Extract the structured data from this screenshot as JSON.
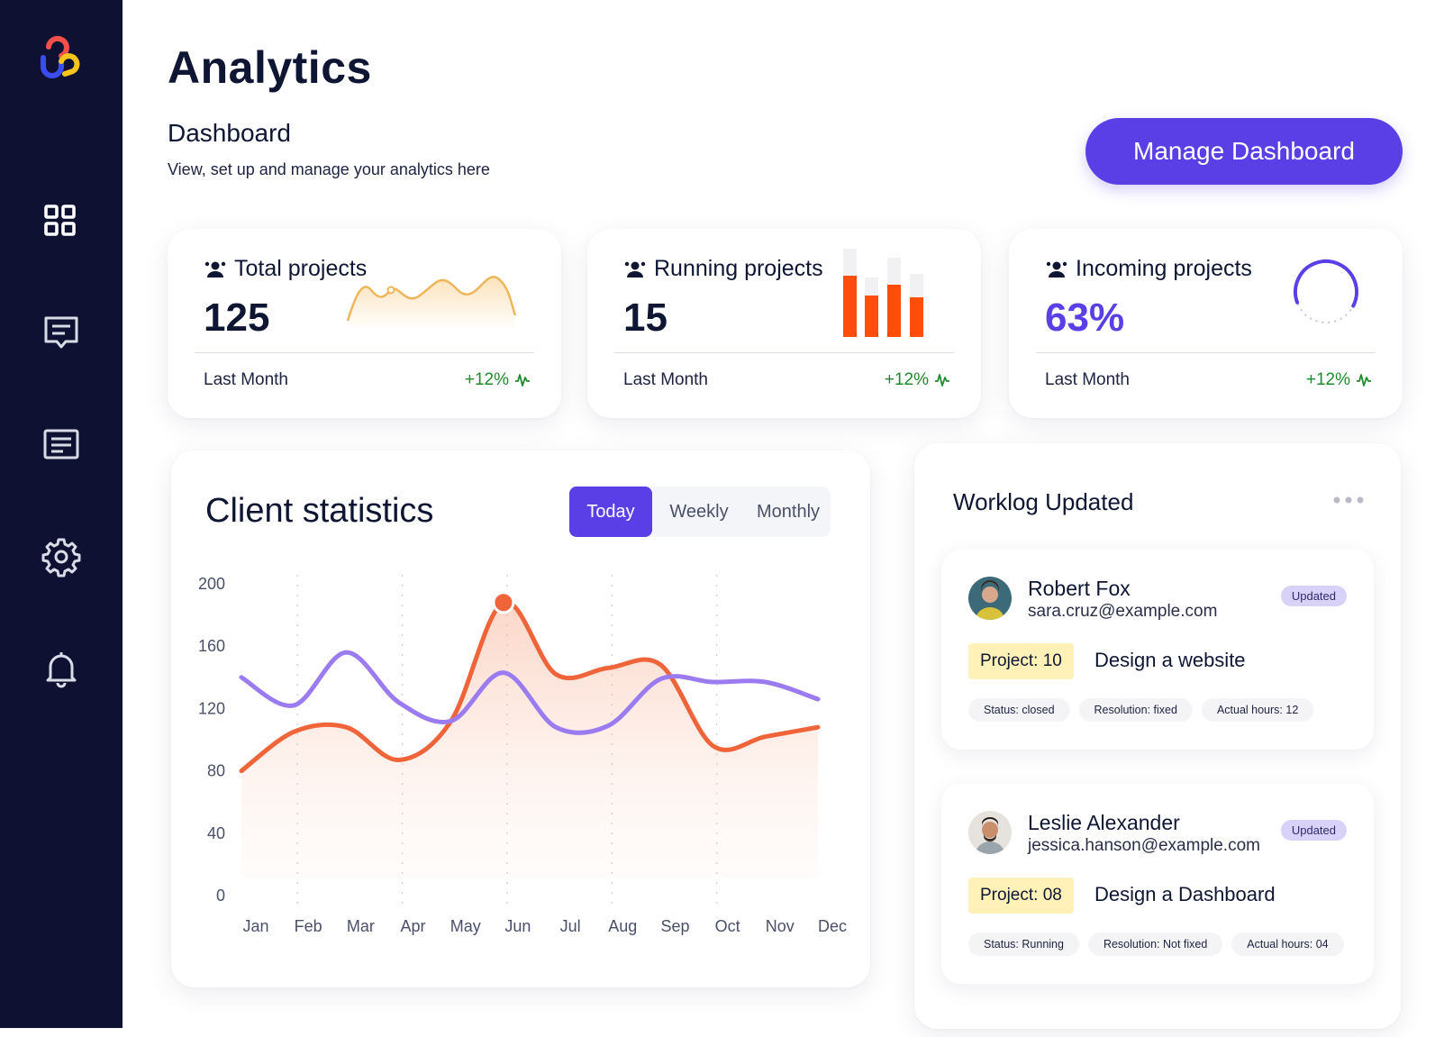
{
  "sidebar": {
    "logo": "app-logo",
    "items": [
      {
        "icon": "grid-icon",
        "name": "sidebar-item-dashboard"
      },
      {
        "icon": "chat-icon",
        "name": "sidebar-item-messages"
      },
      {
        "icon": "document-icon",
        "name": "sidebar-item-documents"
      },
      {
        "icon": "gear-icon",
        "name": "sidebar-item-settings"
      },
      {
        "icon": "bell-icon",
        "name": "sidebar-item-notifications"
      }
    ]
  },
  "header": {
    "title": "Analytics",
    "section": "Dashboard",
    "subtitle": "View, set up and manage your analytics here",
    "manage_button": "Manage Dashboard"
  },
  "stats": [
    {
      "label": "Total projects",
      "value": "125",
      "period": "Last Month",
      "change": "+12%",
      "icon": "people-icon",
      "visual": "area-sparkline"
    },
    {
      "label": "Running projects",
      "value": "15",
      "period": "Last Month",
      "change": "+12%",
      "icon": "people-icon",
      "visual": "mini-bar-chart"
    },
    {
      "label": "Incoming projects",
      "value": "63%",
      "period": "Last Month",
      "change": "+12%",
      "icon": "people-icon",
      "visual": "progress-ring",
      "progress": 0.63
    }
  ],
  "colors": {
    "sidebar": "#0f1133",
    "accent": "#5b3fe6",
    "orange": "#f0643a",
    "purple_line": "#9a7cf0",
    "positive": "#1e8a2e",
    "bar": "#ff4d0a"
  },
  "client_statistics": {
    "title": "Client statistics",
    "tabs": [
      "Today",
      "Weekly",
      "Monthly"
    ],
    "active_tab": "Today"
  },
  "chart_data": {
    "type": "line",
    "title": "Client statistics",
    "categories": [
      "Jan",
      "Feb",
      "Mar",
      "Apr",
      "May",
      "Jun",
      "Jul",
      "Aug",
      "Sep",
      "Oct",
      "Nov",
      "Dec"
    ],
    "y_ticks": [
      0,
      40,
      80,
      120,
      160,
      200
    ],
    "ylim": [
      0,
      200
    ],
    "series": [
      {
        "values": [
          80,
          105,
          108,
          87,
          112,
          188,
          142,
          146,
          148,
          96,
          102,
          108
        ],
        "color": "#f0643a",
        "filled": true
      },
      {
        "values": [
          140,
          122,
          156,
          124,
          112,
          143,
          108,
          109,
          139,
          137,
          137,
          126
        ],
        "color": "#9a7cf0",
        "filled": false
      }
    ],
    "highlight": {
      "category": "Jun",
      "value": 188
    },
    "grid": "vertical-dotted"
  },
  "worklog": {
    "title": "Worklog Updated",
    "entries": [
      {
        "name": "Robert Fox",
        "email": "sara.cruz@example.com",
        "badge": "Updated",
        "project": "Project: 10",
        "description": "Design a website",
        "chips": [
          "Status: closed",
          "Resolution: fixed",
          "Actual hours: 12"
        ]
      },
      {
        "name": "Leslie Alexander",
        "email": "jessica.hanson@example.com",
        "badge": "Updated",
        "project": "Project: 08",
        "description": "Design a Dashboard",
        "chips": [
          "Status: Running",
          "Resolution: Not fixed",
          "Actual hours: 04"
        ]
      }
    ]
  }
}
